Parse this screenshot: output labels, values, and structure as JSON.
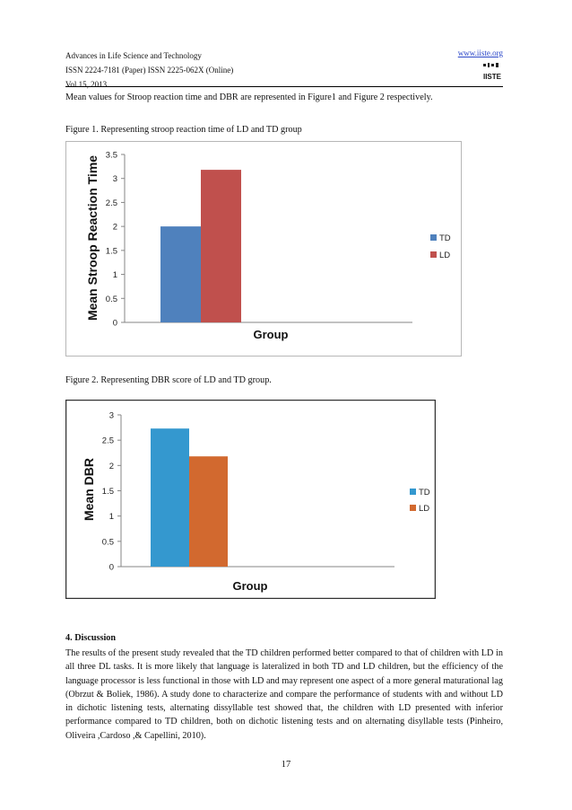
{
  "header": {
    "journal": "Advances in Life Science and Technology",
    "issn": "ISSN 2224-7181 (Paper) ISSN 2225-062X (Online)",
    "volume": "Vol.15, 2013",
    "url": "www.iiste.org",
    "logo_text": "IISTE"
  },
  "intro": "Mean values for Stroop reaction time and DBR are represented in Figure1 and Figure 2 respectively.",
  "figure1_caption": "Figure 1. Representing stroop reaction time of LD and TD group",
  "figure2_caption": "Figure 2. Representing DBR score of LD and TD group.",
  "chart_data": [
    {
      "type": "bar",
      "categories": [
        "Group"
      ],
      "series": [
        {
          "name": "TD",
          "values": [
            2.0
          ],
          "color": "#4f81bd"
        },
        {
          "name": "LD",
          "values": [
            3.18
          ],
          "color": "#c0504d"
        }
      ],
      "xlabel": "Group",
      "ylabel": "Mean Stroop Reaction Time",
      "ylim": [
        0,
        3.5
      ],
      "yticks": [
        "0",
        "0.5",
        "1",
        "1.5",
        "2",
        "2.5",
        "3",
        "3.5"
      ],
      "legend": "right"
    },
    {
      "type": "bar",
      "categories": [
        "Group"
      ],
      "series": [
        {
          "name": "TD",
          "values": [
            2.73
          ],
          "color": "#3498cf"
        },
        {
          "name": "LD",
          "values": [
            2.18
          ],
          "color": "#d2692f"
        }
      ],
      "xlabel": "Group",
      "ylabel": "Mean DBR",
      "ylim": [
        0,
        3
      ],
      "yticks": [
        "0",
        "0.5",
        "1",
        "1.5",
        "2",
        "2.5",
        "3"
      ],
      "legend": "right"
    }
  ],
  "discussion": {
    "heading": "4. Discussion",
    "text": "The results of the present study revealed that the TD children performed better compared to that of children with LD in all three DL tasks. It is more likely that language is lateralized in both TD and LD children, but the efficiency of the language processor is less functional in those with LD and may represent one aspect of a more general maturational lag (Obrzut & Boliek, 1986). A study done  to characterize and compare the performance of students with and without LD in dichotic listening tests, alternating dissyllable test showed that, the children with LD presented with inferior performance compared to TD children, both on dichotic listening tests and on alternating disyllable tests (Pinheiro, Oliveira ,Cardoso ,& Capellini, 2010)."
  },
  "page_number": "17"
}
